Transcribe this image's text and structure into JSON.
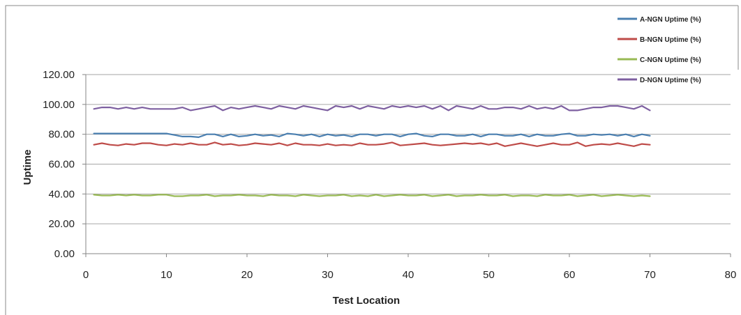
{
  "chart_data": {
    "type": "line",
    "title": "",
    "xlabel": "Test Location",
    "ylabel": "Uptime",
    "xlim": [
      0,
      80
    ],
    "ylim": [
      0,
      120
    ],
    "xticks": [
      "0",
      "10",
      "20",
      "30",
      "40",
      "50",
      "60",
      "70",
      "80"
    ],
    "yticks": [
      "0.00",
      "20.00",
      "40.00",
      "60.00",
      "80.00",
      "100.00",
      "120.00"
    ],
    "grid": true,
    "legend_position": "top-right",
    "x": [
      1,
      2,
      3,
      4,
      5,
      6,
      7,
      8,
      9,
      10,
      11,
      12,
      13,
      14,
      15,
      16,
      17,
      18,
      19,
      20,
      21,
      22,
      23,
      24,
      25,
      26,
      27,
      28,
      29,
      30,
      31,
      32,
      33,
      34,
      35,
      36,
      37,
      38,
      39,
      40,
      41,
      42,
      43,
      44,
      45,
      46,
      47,
      48,
      49,
      50,
      51,
      52,
      53,
      54,
      55,
      56,
      57,
      58,
      59,
      60,
      61,
      62,
      63,
      64,
      65,
      66,
      67,
      68,
      69,
      70
    ],
    "series": [
      {
        "name": "A-NGN Uptime (%)",
        "color": "#4a7fb0",
        "values": [
          80.5,
          80.5,
          80.5,
          80.5,
          80.5,
          80.5,
          80.5,
          80.5,
          80.5,
          80.5,
          79.5,
          78.5,
          78.5,
          78,
          80,
          80,
          78.5,
          80,
          78.5,
          79,
          80,
          79,
          79.5,
          78.5,
          80.5,
          80,
          79,
          80,
          78.5,
          80,
          79,
          79.5,
          78.5,
          80,
          80,
          79,
          80,
          80,
          78.5,
          80,
          80.5,
          79,
          78.5,
          80,
          80,
          79,
          79,
          80,
          78.5,
          80,
          80,
          79,
          79,
          80,
          78.5,
          80,
          79,
          79,
          80,
          80.5,
          79,
          79,
          80,
          79.5,
          80,
          79,
          80,
          78.5,
          80,
          79
        ]
      },
      {
        "name": "B-NGN Uptime (%)",
        "color": "#be4b48",
        "values": [
          73,
          74,
          73,
          72.5,
          73.5,
          73,
          74,
          74,
          73,
          72.5,
          73.5,
          73,
          74,
          73,
          73,
          74.5,
          73,
          73.5,
          72.5,
          73,
          74,
          73.5,
          73,
          74,
          72.5,
          74,
          73,
          73,
          72.5,
          73.5,
          72.5,
          73,
          72.5,
          74,
          73,
          73,
          73.5,
          74.5,
          72.5,
          73,
          73.5,
          74,
          73,
          72.5,
          73,
          73.5,
          74,
          73.5,
          74,
          73,
          74,
          72,
          73,
          74,
          73,
          72,
          73,
          74,
          73,
          73,
          74.5,
          72,
          73,
          73.5,
          73,
          74,
          73,
          72,
          73.5,
          73
        ]
      },
      {
        "name": "C-NGN Uptime (%)",
        "color": "#98b954",
        "values": [
          39.5,
          39,
          39,
          39.5,
          39,
          39.5,
          39,
          39,
          39.5,
          39.5,
          38.5,
          38.5,
          39,
          39,
          39.5,
          38.5,
          39,
          39,
          39.5,
          39,
          39,
          38.5,
          39.5,
          39,
          39,
          38.5,
          39.5,
          39,
          38.5,
          39,
          39,
          39.5,
          38.5,
          39,
          38.5,
          39.5,
          38.5,
          39,
          39.5,
          39,
          39,
          39.5,
          38.5,
          39,
          39.5,
          38.5,
          39,
          39,
          39.5,
          39,
          39,
          39.5,
          38.5,
          39,
          39,
          38.5,
          39.5,
          39,
          39,
          39.5,
          38.5,
          39,
          39.5,
          38.5,
          39,
          39.5,
          39,
          38.5,
          39,
          38.5
        ]
      },
      {
        "name": "D-NGN Uptime (%)",
        "color": "#7d5fa0",
        "values": [
          97,
          98,
          98,
          97,
          98,
          97,
          98,
          97,
          97,
          97,
          97,
          98,
          96,
          97,
          98,
          99,
          96,
          98,
          97,
          98,
          99,
          98,
          97,
          99,
          98,
          97,
          99,
          98,
          97,
          96,
          99,
          98,
          99,
          97,
          99,
          98,
          97,
          99,
          98,
          99,
          98,
          99,
          97,
          99,
          96,
          99,
          98,
          97,
          99,
          97,
          97,
          98,
          98,
          97,
          99,
          97,
          98,
          97,
          99,
          96,
          96,
          97,
          98,
          98,
          99,
          99,
          98,
          97,
          99,
          96
        ]
      }
    ]
  }
}
